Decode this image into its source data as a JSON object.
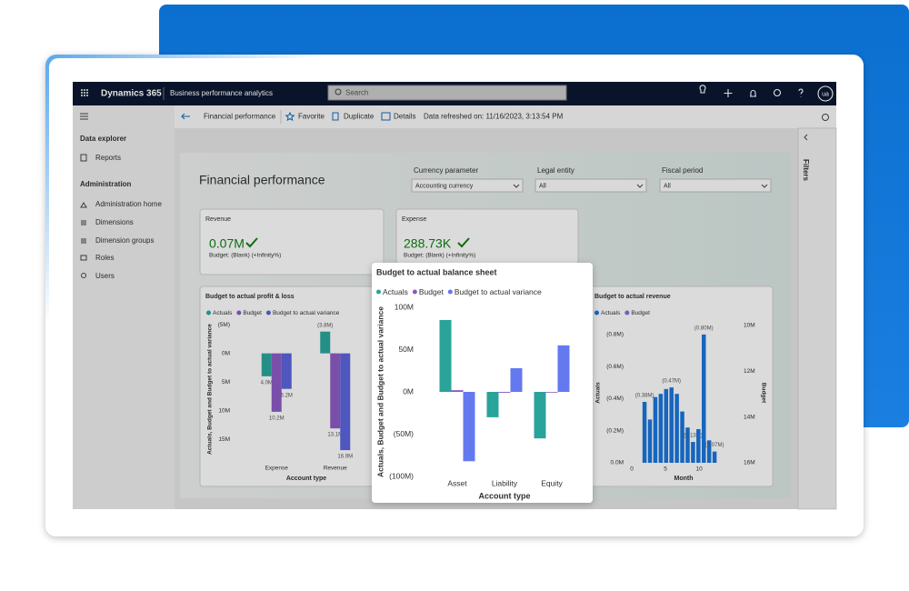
{
  "header": {
    "app": "Dynamics 365",
    "module": "Business performance analytics",
    "search": "Search",
    "user": "ua"
  },
  "sidebar": {
    "sections": [
      {
        "title": "Data explorer",
        "items": [
          "Reports"
        ]
      },
      {
        "title": "Administration",
        "items": [
          "Administration home",
          "Dimensions",
          "Dimension groups",
          "Roles",
          "Users"
        ]
      }
    ]
  },
  "toolbar": {
    "page": "Financial performance",
    "actions": [
      "Favorite",
      "Duplicate",
      "Details"
    ],
    "refreshed": "Data refreshed on: 11/16/2023, 3:13:54 PM"
  },
  "filters_pane": "Filters",
  "report": {
    "title": "Financial performance",
    "slicers": [
      {
        "label": "Currency parameter",
        "value": "Accounting currency"
      },
      {
        "label": "Legal entity",
        "value": "All"
      },
      {
        "label": "Fiscal period",
        "value": "All"
      }
    ],
    "cards": [
      {
        "title": "Revenue",
        "value": "0.07M",
        "subtitle": "Budget: (Blank) (+Infinity%)"
      },
      {
        "title": "Expense",
        "value": "288.73K",
        "subtitle": "Budget: (Blank) (+Infinity%)"
      }
    ]
  },
  "chart_data": [
    {
      "type": "bar",
      "title": "Budget to actual balance sheet",
      "x_label": "Account type",
      "y_label": "Actuals, Budget and Budget to actual variance",
      "categories": [
        "Asset",
        "Liability",
        "Equity"
      ],
      "series": [
        {
          "name": "Actuals",
          "color": "#2aa39a",
          "values": [
            85,
            -30,
            -55
          ]
        },
        {
          "name": "Budget",
          "color": "#8a5ac2",
          "values": [
            2,
            -1,
            0
          ]
        },
        {
          "name": "Budget to actual variance",
          "color": "#6478f0",
          "values": [
            -82,
            28,
            55
          ]
        }
      ],
      "ylim": [
        -100,
        100
      ],
      "yticks": [
        {
          "value": 100,
          "label": "100M"
        },
        {
          "value": 50,
          "label": "50M"
        },
        {
          "value": 0,
          "label": "0M"
        },
        {
          "value": -50,
          "label": "(50M)"
        },
        {
          "value": -100,
          "label": "(100M)"
        }
      ]
    },
    {
      "type": "bar",
      "title": "Budget to actual profit & loss",
      "x_label": "Account type",
      "y_label": "Actuals, Budget and Budget to actual variance",
      "categories": [
        "Expense",
        "Revenue"
      ],
      "series": [
        {
          "name": "Actuals",
          "color": "#2aa39a",
          "values": [
            4.0,
            -3.8
          ],
          "value_labels": [
            "4.0M",
            "(3.8M)"
          ]
        },
        {
          "name": "Budget",
          "color": "#8a5ac2",
          "values": [
            10.2,
            13.1
          ],
          "value_labels": [
            "10.2M",
            "13.1M"
          ]
        },
        {
          "name": "Budget to actual variance",
          "color": "#5a62d8",
          "values": [
            6.2,
            16.9
          ],
          "value_labels": [
            "6.2M",
            "16.9M"
          ]
        }
      ],
      "ylim": [
        -5.5,
        18
      ],
      "y_reversed": true,
      "yticks": [
        {
          "value": -5,
          "label": "(5M)"
        },
        {
          "value": 0,
          "label": "0M"
        },
        {
          "value": 5,
          "label": "5M"
        },
        {
          "value": 10,
          "label": "10M"
        },
        {
          "value": 15,
          "label": "15M"
        }
      ]
    },
    {
      "type": "bar",
      "title": "Budget to actual revenue",
      "x_label": "Month",
      "y_label": "Actuals",
      "y2_label": "Budget",
      "x": [
        1.9,
        2.7,
        3.5,
        4.3,
        5.1,
        5.9,
        6.7,
        7.5,
        8.3,
        9.1,
        9.9,
        10.7,
        11.5,
        12.3
      ],
      "series": [
        {
          "name": "Actuals",
          "color": "#1a73d9",
          "values": [
            -0.38,
            -0.27,
            -0.41,
            -0.43,
            -0.46,
            -0.47,
            -0.43,
            -0.32,
            -0.22,
            -0.13,
            -0.21,
            -0.8,
            -0.14,
            -0.07
          ],
          "value_labels": [
            "(0.38M)",
            null,
            null,
            null,
            null,
            "(0.47M)",
            null,
            null,
            null,
            "(0.13M)",
            null,
            "(0.80M)",
            null,
            "(0.07M)"
          ]
        },
        {
          "name": "Budget",
          "color": "#7f6fd0",
          "axis": "y2",
          "values": [
            null,
            null,
            null,
            null,
            null,
            null,
            null,
            null,
            null,
            null,
            null,
            null,
            null,
            null
          ]
        }
      ],
      "xlim": [
        0,
        13.5
      ],
      "xticks": [
        0,
        5,
        10
      ],
      "ylim": [
        -0.93,
        0
      ],
      "y_reversed": true,
      "yticks": [
        {
          "value": -0.8,
          "label": "(0.8M)"
        },
        {
          "value": -0.6,
          "label": "(0.6M)"
        },
        {
          "value": -0.4,
          "label": "(0.4M)"
        },
        {
          "value": -0.2,
          "label": "(0.2M)"
        },
        {
          "value": 0,
          "label": "0.0M"
        }
      ],
      "y2lim": [
        9.5,
        16
      ],
      "y2_reversed": true,
      "y2ticks": [
        {
          "value": 10,
          "label": "10M"
        },
        {
          "value": 12,
          "label": "12M"
        },
        {
          "value": 14,
          "label": "14M"
        },
        {
          "value": 16,
          "label": "16M"
        }
      ]
    }
  ]
}
